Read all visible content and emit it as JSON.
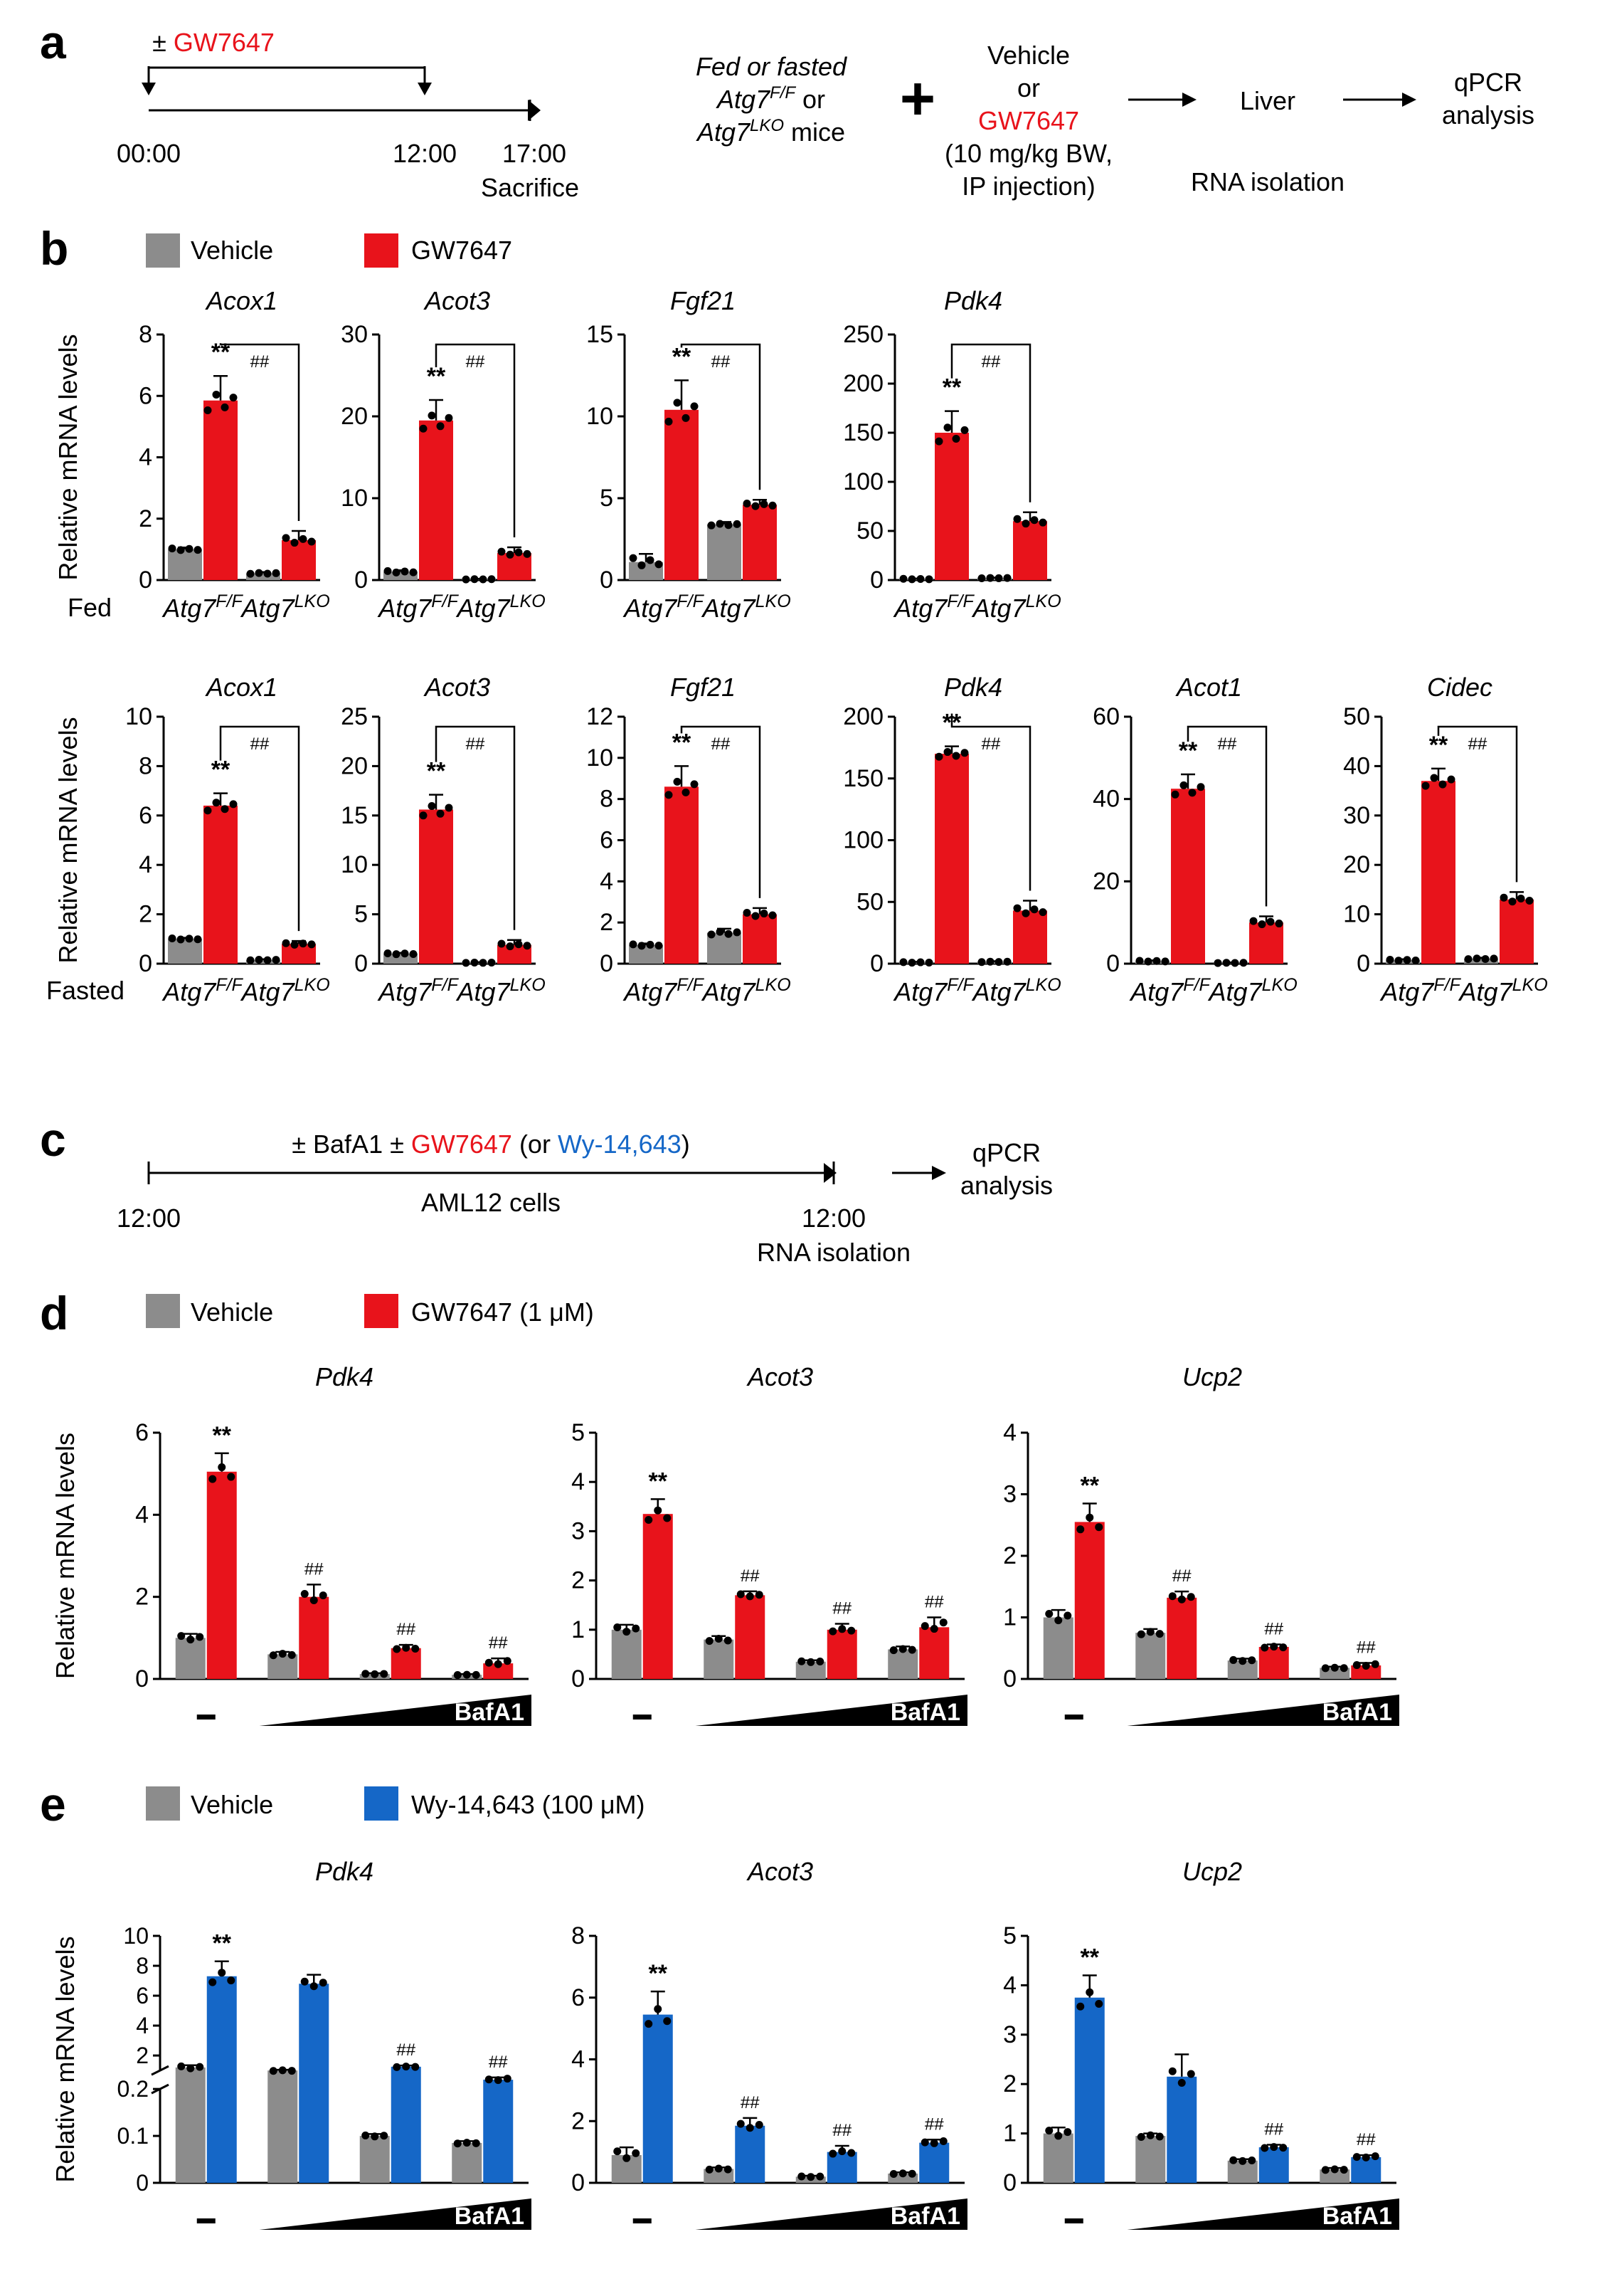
{
  "panel_labels": {
    "a": "a",
    "b": "b",
    "c": "c",
    "d": "d",
    "e": "e"
  },
  "colors": {
    "vehicle": "#8c8c8c",
    "gw7647": "#e8131b",
    "wy": "#1567c7",
    "axis": "#000000"
  },
  "panel_a": {
    "timeline_treatment": "± ",
    "timeline_drug": "GW7647",
    "time_start": "00:00",
    "time_mid": "12:00",
    "time_end": "17:00",
    "sacrifice": "Sacrifice",
    "mice_line1": "Fed or fasted",
    "mice_line2_pre": "Atg7",
    "mice_line2_sup": "F/F",
    "mice_line2_post": " or",
    "mice_line3_pre": "Atg7",
    "mice_line3_sup": "LKO",
    "mice_line3_post": " mice",
    "plus": "+",
    "tx_line1": "Vehicle",
    "tx_line2": "or",
    "tx_line3": "GW7647",
    "tx_line4": "(10 mg/kg BW,",
    "tx_line5": "IP injection)",
    "liver": "Liver",
    "rna_isolation": "RNA isolation",
    "qpcr_line1": "qPCR",
    "qpcr_line2": "analysis"
  },
  "panel_c": {
    "treat_pre": "± BafA1 ± ",
    "treat_drug": "GW7647",
    "treat_mid": " (or ",
    "treat_alt": "Wy-14,643",
    "treat_post": ")",
    "cells": "AML12 cells",
    "time_start": "12:00",
    "time_end": "12:00",
    "rna_isolation": "RNA isolation",
    "qpcr_line1": "qPCR",
    "qpcr_line2": "analysis"
  },
  "legends": {
    "b": [
      "Vehicle",
      "GW7647"
    ],
    "d": [
      "Vehicle",
      "GW7647 (1 μM)"
    ],
    "e": [
      "Vehicle",
      "Wy-14,643 (100 μM)"
    ]
  },
  "genotypes": {
    "base": "Atg7",
    "ff": "F/F",
    "lko": "LKO"
  },
  "condition_labels": {
    "fed": "Fed",
    "fasted": "Fasted"
  },
  "bafa1_label": "BafA1",
  "dash_label": "–",
  "chart_data": [
    {
      "id": "b-fed-acox1",
      "type": "bar",
      "panel": "b",
      "condition": "Fed",
      "title": "Acox1",
      "ylabel": "Relative mRNA levels",
      "ylim": [
        0,
        8
      ],
      "yticks": [
        0,
        2,
        4,
        6,
        8
      ],
      "groups": [
        "Atg7F/F",
        "Atg7LKO"
      ],
      "series": [
        "Vehicle",
        "GW7647"
      ],
      "values": [
        [
          1.0,
          5.85
        ],
        [
          0.22,
          1.3
        ]
      ],
      "errors": [
        [
          0.06,
          0.8
        ],
        [
          0.04,
          0.3
        ]
      ],
      "significance": {
        "star": "**",
        "hash": "##"
      }
    },
    {
      "id": "b-fed-acot3",
      "type": "bar",
      "panel": "b",
      "condition": "Fed",
      "title": "Acot3",
      "ylabel": "",
      "ylim": [
        0,
        30
      ],
      "yticks": [
        0,
        10,
        20,
        30
      ],
      "groups": [
        "Atg7F/F",
        "Atg7LKO"
      ],
      "series": [
        "Vehicle",
        "GW7647"
      ],
      "values": [
        [
          1.0,
          19.5
        ],
        [
          0.1,
          3.3
        ]
      ],
      "errors": [
        [
          0.2,
          2.5
        ],
        [
          0.05,
          0.7
        ]
      ],
      "significance": {
        "star": "**",
        "hash": "##"
      }
    },
    {
      "id": "b-fed-fgf21",
      "type": "bar",
      "panel": "b",
      "condition": "Fed",
      "title": "Fgf21",
      "ylabel": "",
      "ylim": [
        0,
        15
      ],
      "yticks": [
        0,
        5,
        10,
        15
      ],
      "groups": [
        "Atg7F/F",
        "Atg7LKO"
      ],
      "series": [
        "Vehicle",
        "GW7647"
      ],
      "values": [
        [
          1.1,
          10.4
        ],
        [
          3.4,
          4.6
        ]
      ],
      "errors": [
        [
          0.5,
          1.8
        ],
        [
          0.15,
          0.3
        ]
      ],
      "significance": {
        "star": "**",
        "hash": "##"
      }
    },
    {
      "id": "b-fed-pdk4",
      "type": "bar",
      "panel": "b",
      "condition": "Fed",
      "title": "Pdk4",
      "ylabel": "",
      "ylim": [
        0,
        250
      ],
      "yticks": [
        0,
        50,
        100,
        150,
        200,
        250
      ],
      "groups": [
        "Atg7F/F",
        "Atg7LKO"
      ],
      "series": [
        "Vehicle",
        "GW7647"
      ],
      "values": [
        [
          1,
          150
        ],
        [
          2,
          60
        ]
      ],
      "errors": [
        [
          0.5,
          22
        ],
        [
          0.5,
          9
        ]
      ],
      "significance": {
        "star": "**",
        "hash": "##"
      }
    },
    {
      "id": "b-fasted-acox1",
      "type": "bar",
      "panel": "b",
      "condition": "Fasted",
      "title": "Acox1",
      "ylabel": "Relative mRNA levels",
      "ylim": [
        0,
        10
      ],
      "yticks": [
        0,
        2,
        4,
        6,
        8,
        10
      ],
      "groups": [
        "Atg7F/F",
        "Atg7LKO"
      ],
      "series": [
        "Vehicle",
        "GW7647"
      ],
      "values": [
        [
          1.0,
          6.4
        ],
        [
          0.15,
          0.8
        ]
      ],
      "errors": [
        [
          0.05,
          0.5
        ],
        [
          0.03,
          0.12
        ]
      ],
      "significance": {
        "star": "**",
        "hash": "##"
      }
    },
    {
      "id": "b-fasted-acot3",
      "type": "bar",
      "panel": "b",
      "condition": "Fasted",
      "title": "Acot3",
      "ylabel": "",
      "ylim": [
        0,
        25
      ],
      "yticks": [
        0,
        5,
        10,
        15,
        20,
        25
      ],
      "groups": [
        "Atg7F/F",
        "Atg7LKO"
      ],
      "series": [
        "Vehicle",
        "GW7647"
      ],
      "values": [
        [
          1.0,
          15.6
        ],
        [
          0.1,
          1.9
        ]
      ],
      "errors": [
        [
          0.1,
          1.5
        ],
        [
          0.05,
          0.5
        ]
      ],
      "significance": {
        "star": "**",
        "hash": "##"
      }
    },
    {
      "id": "b-fasted-fgf21",
      "type": "bar",
      "panel": "b",
      "condition": "Fasted",
      "title": "Fgf21",
      "ylabel": "",
      "ylim": [
        0,
        12
      ],
      "yticks": [
        0,
        2,
        4,
        6,
        8,
        10,
        12
      ],
      "groups": [
        "Atg7F/F",
        "Atg7LKO"
      ],
      "series": [
        "Vehicle",
        "GW7647"
      ],
      "values": [
        [
          0.9,
          8.6
        ],
        [
          1.5,
          2.4
        ]
      ],
      "errors": [
        [
          0.08,
          1.0
        ],
        [
          0.2,
          0.3
        ]
      ],
      "significance": {
        "star": "**",
        "hash": "##"
      }
    },
    {
      "id": "b-fasted-pdk4",
      "type": "bar",
      "panel": "b",
      "condition": "Fasted",
      "title": "Pdk4",
      "ylabel": "",
      "ylim": [
        0,
        200
      ],
      "yticks": [
        0,
        50,
        100,
        150,
        200
      ],
      "groups": [
        "Atg7F/F",
        "Atg7LKO"
      ],
      "series": [
        "Vehicle",
        "GW7647"
      ],
      "values": [
        [
          1,
          170
        ],
        [
          1.5,
          43
        ]
      ],
      "errors": [
        [
          0.5,
          6
        ],
        [
          0.5,
          8
        ]
      ],
      "significance": {
        "star": "**",
        "hash": "##"
      }
    },
    {
      "id": "b-fasted-acot1",
      "type": "bar",
      "panel": "b",
      "condition": "Fasted",
      "title": "Acot1",
      "ylabel": "",
      "ylim": [
        0,
        60
      ],
      "yticks": [
        0,
        20,
        40,
        60
      ],
      "groups": [
        "Atg7F/F",
        "Atg7LKO"
      ],
      "series": [
        "Vehicle",
        "GW7647"
      ],
      "values": [
        [
          0.6,
          42.5
        ],
        [
          0.2,
          10
        ]
      ],
      "errors": [
        [
          0.2,
          3.5
        ],
        [
          0.1,
          1.5
        ]
      ],
      "significance": {
        "star": "**",
        "hash": "##"
      }
    },
    {
      "id": "b-fasted-cidec",
      "type": "bar",
      "panel": "b",
      "condition": "Fasted",
      "title": "Cidec",
      "ylabel": "",
      "ylim": [
        0,
        50
      ],
      "yticks": [
        0,
        10,
        20,
        30,
        40,
        50
      ],
      "groups": [
        "Atg7F/F",
        "Atg7LKO"
      ],
      "series": [
        "Vehicle",
        "GW7647"
      ],
      "values": [
        [
          0.7,
          37
        ],
        [
          1.0,
          13
        ]
      ],
      "errors": [
        [
          0.2,
          2.5
        ],
        [
          0.2,
          1.5
        ]
      ],
      "significance": {
        "star": "**",
        "hash": "##"
      }
    },
    {
      "id": "d-pdk4",
      "type": "bar",
      "panel": "d",
      "title": "Pdk4",
      "ylabel": "Relative mRNA levels",
      "ylim": [
        0,
        6
      ],
      "yticks": [
        0,
        2,
        4,
        6
      ],
      "groups": [
        "–",
        "BafA1 low",
        "BafA1 mid",
        "BafA1 high"
      ],
      "series": [
        "Vehicle",
        "GW7647"
      ],
      "values": [
        [
          1.0,
          5.05
        ],
        [
          0.6,
          2.0
        ],
        [
          0.12,
          0.75
        ],
        [
          0.1,
          0.38
        ]
      ],
      "errors": [
        [
          0.1,
          0.45
        ],
        [
          0.06,
          0.3
        ],
        [
          0.02,
          0.08
        ],
        [
          0.02,
          0.12
        ]
      ],
      "significance": [
        "**",
        "##",
        "##",
        "##"
      ]
    },
    {
      "id": "d-acot3",
      "type": "bar",
      "panel": "d",
      "title": "Acot3",
      "ylabel": "",
      "ylim": [
        0,
        5
      ],
      "yticks": [
        0,
        1,
        2,
        3,
        4,
        5
      ],
      "groups": [
        "–",
        "BafA1 low",
        "BafA1 mid",
        "BafA1 high"
      ],
      "series": [
        "Vehicle",
        "GW7647"
      ],
      "values": [
        [
          1.0,
          3.35
        ],
        [
          0.8,
          1.7
        ],
        [
          0.35,
          1.0
        ],
        [
          0.6,
          1.05
        ]
      ],
      "errors": [
        [
          0.1,
          0.3
        ],
        [
          0.07,
          0.08
        ],
        [
          0.03,
          0.12
        ],
        [
          0.06,
          0.2
        ]
      ],
      "significance": [
        "**",
        "##",
        "##",
        "##"
      ]
    },
    {
      "id": "d-ucp2",
      "type": "bar",
      "panel": "d",
      "title": "Ucp2",
      "ylabel": "",
      "ylim": [
        0,
        4
      ],
      "yticks": [
        0,
        1,
        2,
        3,
        4
      ],
      "groups": [
        "–",
        "BafA1 low",
        "BafA1 mid",
        "BafA1 high"
      ],
      "series": [
        "Vehicle",
        "GW7647"
      ],
      "values": [
        [
          1.0,
          2.55
        ],
        [
          0.75,
          1.32
        ],
        [
          0.3,
          0.52
        ],
        [
          0.18,
          0.22
        ]
      ],
      "errors": [
        [
          0.12,
          0.3
        ],
        [
          0.06,
          0.1
        ],
        [
          0.03,
          0.04
        ],
        [
          0.02,
          0.04
        ]
      ],
      "significance": [
        "**",
        "##",
        "##",
        "##"
      ]
    },
    {
      "id": "e-pdk4",
      "type": "bar",
      "panel": "e",
      "title": "Pdk4",
      "ylabel": "Relative mRNA levels",
      "axis_break": true,
      "ylim_lower": [
        0,
        0.2
      ],
      "ylim_upper": [
        1,
        10
      ],
      "yticks_lower": [
        0,
        0.1,
        0.2
      ],
      "yticks_upper": [
        2,
        4,
        6,
        8,
        10
      ],
      "groups": [
        "–",
        "BafA1 low",
        "BafA1 mid",
        "BafA1 high"
      ],
      "series": [
        "Vehicle",
        "Wy-14,643"
      ],
      "values": [
        [
          1.2,
          7.3
        ],
        [
          1.0,
          6.8
        ],
        [
          0.1,
          1.25
        ],
        [
          0.085,
          0.6
        ]
      ],
      "errors": [
        [
          0.15,
          1.0
        ],
        [
          0.05,
          0.6
        ],
        [
          0.004,
          0.08
        ],
        [
          0.004,
          0.1
        ]
      ],
      "significance": [
        "**",
        "",
        "##",
        "##"
      ]
    },
    {
      "id": "e-acot3",
      "type": "bar",
      "panel": "e",
      "title": "Acot3",
      "ylabel": "",
      "ylim": [
        0,
        8
      ],
      "yticks": [
        0,
        2,
        4,
        6,
        8
      ],
      "groups": [
        "–",
        "BafA1 low",
        "BafA1 mid",
        "BafA1 high"
      ],
      "series": [
        "Vehicle",
        "Wy-14,643"
      ],
      "values": [
        [
          0.9,
          5.45
        ],
        [
          0.45,
          1.85
        ],
        [
          0.2,
          1.0
        ],
        [
          0.3,
          1.3
        ]
      ],
      "errors": [
        [
          0.25,
          0.75
        ],
        [
          0.05,
          0.25
        ],
        [
          0.03,
          0.2
        ],
        [
          0.04,
          0.1
        ]
      ],
      "significance": [
        "**",
        "##",
        "##",
        "##"
      ]
    },
    {
      "id": "e-ucp2",
      "type": "bar",
      "panel": "e",
      "title": "Ucp2",
      "ylabel": "",
      "ylim": [
        0,
        5
      ],
      "yticks": [
        0,
        1,
        2,
        3,
        4,
        5
      ],
      "groups": [
        "–",
        "BafA1 low",
        "BafA1 mid",
        "BafA1 high"
      ],
      "series": [
        "Vehicle",
        "Wy-14,643"
      ],
      "values": [
        [
          1.0,
          3.75
        ],
        [
          0.95,
          2.15
        ],
        [
          0.45,
          0.72
        ],
        [
          0.27,
          0.52
        ]
      ],
      "errors": [
        [
          0.12,
          0.45
        ],
        [
          0.05,
          0.45
        ],
        [
          0.03,
          0.05
        ],
        [
          0.03,
          0.04
        ]
      ],
      "significance": [
        "**",
        "",
        "##",
        "##"
      ]
    }
  ]
}
